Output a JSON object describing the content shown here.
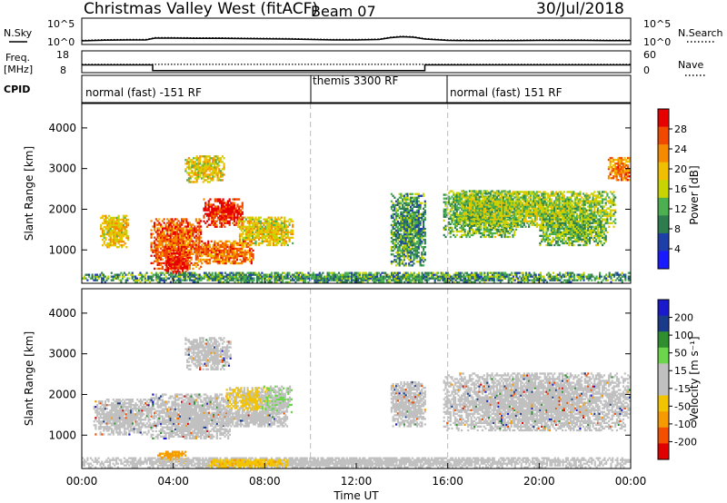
{
  "header": {
    "title": "Christmas Valley West (fitACF)",
    "beam": "Beam 07",
    "date": "30/Jul/2018"
  },
  "noise_panel": {
    "left_label": "N.Sky",
    "right_label": "N.Search",
    "left_ticks": [
      "10^5",
      "10^0"
    ],
    "right_ticks": [
      "10^5",
      "10^0"
    ]
  },
  "freq_panel": {
    "left_label_1": "Freq.",
    "left_label_2": "[MHz]",
    "left_ticks": [
      "18",
      "8"
    ],
    "right_label": "Nave",
    "right_ticks": [
      "60",
      "0"
    ]
  },
  "cpid_panel": {
    "label": "CPID",
    "segments": [
      "normal (fast) -151 RF",
      "themis 3300 RF",
      "normal (fast) 151 RF"
    ]
  },
  "colors": {
    "power_scale": [
      "#1a1aff",
      "#1f3fa8",
      "#2e7d4f",
      "#4caf50",
      "#c8d400",
      "#f0c000",
      "#f58a00",
      "#f04a00",
      "#e60000"
    ],
    "velocity_scale": [
      "#e00000",
      "#f24f00",
      "#f59a00",
      "#f2c400",
      "#c0c0c0",
      "#c0c0c0",
      "#6bd64b",
      "#2f8f2f",
      "#1a3a8a",
      "#1a1acc"
    ]
  },
  "chart_data": [
    {
      "type": "heatmap",
      "name": "power",
      "ylabel": "Slant Range [km]",
      "ylim": [
        180,
        4600
      ],
      "yticks": [
        1000,
        2000,
        3000,
        4000
      ],
      "xticks": [
        "00:00",
        "04:00",
        "08:00",
        "12:00",
        "16:00",
        "20:00",
        "00:00"
      ],
      "colorbar": {
        "label": "Power [dB]",
        "ticks": [
          "4",
          "8",
          "12",
          "16",
          "20",
          "24",
          "28"
        ],
        "range": [
          0,
          30
        ]
      },
      "regions": [
        {
          "t": [
            0.8,
            2.0
          ],
          "r": [
            1050,
            1850
          ],
          "v": 18
        },
        {
          "t": [
            3.0,
            5.2
          ],
          "r": [
            520,
            1750
          ],
          "v": 24
        },
        {
          "t": [
            3.6,
            4.6
          ],
          "r": [
            400,
            900
          ],
          "v": 28
        },
        {
          "t": [
            5.3,
            7.0
          ],
          "r": [
            1550,
            2250
          ],
          "v": 27
        },
        {
          "t": [
            4.5,
            6.2
          ],
          "r": [
            2650,
            3300
          ],
          "v": 17
        },
        {
          "t": [
            6.8,
            9.2
          ],
          "r": [
            1100,
            1800
          ],
          "v": 17
        },
        {
          "t": [
            5.0,
            7.5
          ],
          "r": [
            650,
            1200
          ],
          "v": 23
        },
        {
          "t": [
            13.5,
            15.0
          ],
          "r": [
            600,
            2400
          ],
          "v": 10
        },
        {
          "t": [
            15.8,
            19.0
          ],
          "r": [
            1300,
            2450
          ],
          "v": 12
        },
        {
          "t": [
            16.5,
            23.3
          ],
          "r": [
            1550,
            2450
          ],
          "v": 14
        },
        {
          "t": [
            20.0,
            23.0
          ],
          "r": [
            1100,
            1850
          ],
          "v": 12
        },
        {
          "t": [
            23.0,
            24.0
          ],
          "r": [
            2700,
            3250
          ],
          "v": 22
        },
        {
          "t": [
            0.0,
            24.0
          ],
          "r": [
            190,
            420
          ],
          "v": 10
        }
      ]
    },
    {
      "type": "heatmap",
      "name": "velocity",
      "ylabel": "Slant Range [km]",
      "ylim": [
        180,
        4600
      ],
      "yticks": [
        1000,
        2000,
        3000,
        4000
      ],
      "xticks": [
        "00:00",
        "04:00",
        "08:00",
        "12:00",
        "16:00",
        "20:00",
        "00:00"
      ],
      "xlabel": "Time UT",
      "colorbar": {
        "label": "Velocity [m s⁻¹]",
        "ticks": [
          "200",
          "100",
          "50",
          "15",
          "-15",
          "-50",
          "-100",
          "-200"
        ],
        "range": [
          -250,
          250
        ]
      },
      "regions": [
        {
          "t": [
            0.5,
            3.0
          ],
          "r": [
            1000,
            1900
          ],
          "v": 0
        },
        {
          "t": [
            3.0,
            6.5
          ],
          "r": [
            900,
            2000
          ],
          "v": 0
        },
        {
          "t": [
            4.5,
            6.5
          ],
          "r": [
            2600,
            3400
          ],
          "v": 0
        },
        {
          "t": [
            6.3,
            8.2
          ],
          "r": [
            1600,
            2150
          ],
          "v": -60
        },
        {
          "t": [
            7.8,
            9.2
          ],
          "r": [
            1500,
            2200
          ],
          "v": 40
        },
        {
          "t": [
            6.0,
            9.0
          ],
          "r": [
            1200,
            1600
          ],
          "v": 0
        },
        {
          "t": [
            13.5,
            15.0
          ],
          "r": [
            1200,
            2300
          ],
          "v": 0
        },
        {
          "t": [
            15.8,
            24.0
          ],
          "r": [
            1100,
            2500
          ],
          "v": 0
        },
        {
          "t": [
            3.3,
            4.5
          ],
          "r": [
            300,
            600
          ],
          "v": -120
        },
        {
          "t": [
            0.0,
            24.0
          ],
          "r": [
            190,
            450
          ],
          "v": 20
        },
        {
          "t": [
            5.5,
            9.0
          ],
          "r": [
            190,
            400
          ],
          "v": -80
        }
      ]
    }
  ],
  "noise_series": {
    "x": [
      0,
      1,
      2,
      2.8,
      3.2,
      4,
      5,
      6,
      7,
      8,
      9,
      10,
      11,
      12,
      13,
      13.5,
      14,
      14.5,
      15,
      16,
      17,
      18,
      19,
      20,
      21,
      22,
      23,
      24
    ],
    "y": [
      0.4,
      0.55,
      0.6,
      0.6,
      1.0,
      1.0,
      0.95,
      0.95,
      0.9,
      0.85,
      0.8,
      0.7,
      0.6,
      0.6,
      0.7,
      1.1,
      1.3,
      1.2,
      0.8,
      0.5,
      0.45,
      0.45,
      0.45,
      0.5,
      0.5,
      0.5,
      0.45,
      0.45
    ]
  },
  "freq_series": {
    "x": [
      0,
      3.1,
      3.1,
      15.0,
      15.0,
      24
    ],
    "y": [
      11.4,
      11.4,
      8.6,
      8.6,
      11.4,
      11.4
    ]
  },
  "nave_series": {
    "x": [
      0,
      24
    ],
    "y": [
      22,
      22
    ]
  }
}
